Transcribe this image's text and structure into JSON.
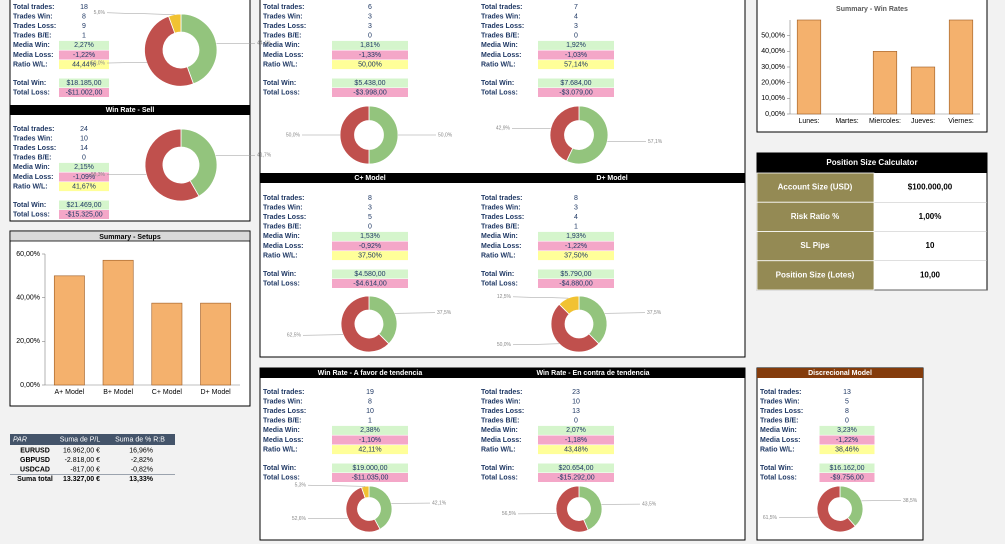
{
  "stat_labels": [
    "Total trades:",
    "Trades Win:",
    "Trades Loss:",
    "Trades B/E:",
    "Media Win:",
    "Media Loss:",
    "Ratio W/L:",
    "Total Win:",
    "Total Loss:"
  ],
  "panels": [
    {
      "values": [
        18,
        8,
        9,
        1,
        "2,27%",
        "-1,22%",
        "44,44%",
        "$18.185,00",
        "-$11.002,00"
      ]
    },
    {
      "title": "Win Rate - Sell",
      "values": [
        24,
        10,
        14,
        0,
        "2,15%",
        "-1,09%",
        "41,67%",
        "$21.469,00",
        "-$15.325,00"
      ]
    },
    {
      "values": [
        6,
        3,
        3,
        0,
        "1,81%",
        "-1,33%",
        "50,00%",
        "$5.438,00",
        "-$3.998,00"
      ]
    },
    {
      "values": [
        7,
        4,
        3,
        0,
        "1,92%",
        "-1,03%",
        "57,14%",
        "$7.684,00",
        "-$3.079,00"
      ]
    },
    {
      "title": "C+ Model",
      "values": [
        8,
        3,
        5,
        0,
        "1,53%",
        "-0,92%",
        "37,50%",
        "$4.580,00",
        "-$4.614,00"
      ]
    },
    {
      "title": "D+ Model",
      "values": [
        8,
        3,
        4,
        1,
        "1,93%",
        "-1,22%",
        "37,50%",
        "$5.790,00",
        "-$4.880,00"
      ]
    },
    {
      "title": "Win Rate - A favor de tendencia",
      "values": [
        19,
        8,
        10,
        1,
        "2,38%",
        "-1,10%",
        "42,11%",
        "$19.000,00",
        "-$11.035,00"
      ]
    },
    {
      "title": "Win Rate - En contra de tendencia",
      "values": [
        23,
        10,
        13,
        0,
        "2,07%",
        "-1,18%",
        "43,48%",
        "$20.654,00",
        "-$15.292,00"
      ]
    },
    {
      "title": "Discrecional Model",
      "values": [
        13,
        5,
        8,
        0,
        "3,23%",
        "-1,22%",
        "38,46%",
        "$16.162,00",
        "-$9.756,00"
      ]
    }
  ],
  "chart_data": [
    {
      "type": "pie",
      "values": [
        44.4,
        50.0,
        5.6
      ],
      "value_labels": [
        "44,4%",
        "50,0%",
        "5,6%"
      ],
      "colors": [
        "#93c47d",
        "#c0504d",
        "#f1c232"
      ]
    },
    {
      "type": "pie",
      "values": [
        41.7,
        58.3
      ],
      "value_labels": [
        "41,7%",
        "58,3%"
      ],
      "colors": [
        "#93c47d",
        "#c0504d"
      ]
    },
    {
      "type": "pie",
      "values": [
        50.0,
        50.0
      ],
      "value_labels": [
        "50,0%",
        "50,0%"
      ],
      "colors": [
        "#93c47d",
        "#c0504d"
      ]
    },
    {
      "type": "pie",
      "values": [
        57.1,
        42.9
      ],
      "value_labels": [
        "57,1%",
        "42,9%"
      ],
      "colors": [
        "#93c47d",
        "#c0504d"
      ]
    },
    {
      "type": "pie",
      "values": [
        37.5,
        62.5
      ],
      "value_labels": [
        "37,5%",
        "62,5%"
      ],
      "colors": [
        "#93c47d",
        "#c0504d"
      ]
    },
    {
      "type": "pie",
      "values": [
        37.5,
        50.0,
        12.5
      ],
      "value_labels": [
        "37,5%",
        "50,0%",
        "12,5%"
      ],
      "colors": [
        "#93c47d",
        "#c0504d",
        "#f1c232"
      ]
    },
    {
      "type": "pie",
      "values": [
        42.1,
        52.6,
        5.3
      ],
      "value_labels": [
        "42,1%",
        "52,6%",
        "5,3%"
      ],
      "colors": [
        "#93c47d",
        "#c0504d",
        "#f1c232"
      ]
    },
    {
      "type": "pie",
      "values": [
        43.5,
        56.5
      ],
      "value_labels": [
        "43,5%",
        "56,5%"
      ],
      "colors": [
        "#93c47d",
        "#c0504d"
      ]
    },
    {
      "type": "pie",
      "values": [
        38.5,
        61.5
      ],
      "value_labels": [
        "38,5%",
        "61,5%"
      ],
      "colors": [
        "#93c47d",
        "#c0504d"
      ]
    },
    {
      "type": "bar",
      "title": "Summary - Setups",
      "categories": [
        "A+ Model",
        "B+ Model",
        "C+ Model",
        "D+ Model"
      ],
      "values": [
        50,
        57.14,
        37.5,
        37.5
      ],
      "color": "#f4b16d",
      "ylim": [
        0,
        60
      ],
      "yticks": [
        {
          "value": 0,
          "label": "0,00%"
        },
        {
          "value": 20,
          "label": "20,00%"
        },
        {
          "value": 40,
          "label": "40,00%"
        },
        {
          "value": 60,
          "label": "60,00%"
        }
      ]
    },
    {
      "type": "bar",
      "title": "Summary - Win Rates",
      "categories": [
        "Lunes:",
        "Martes:",
        "Miercoles:",
        "Jueves:",
        "Viernes:"
      ],
      "values": [
        60,
        0,
        40,
        30,
        60
      ],
      "color": "#f4b16d",
      "ylim": [
        0,
        60
      ],
      "yticks": [
        {
          "value": 0,
          "label": "0,00%"
        },
        {
          "value": 10,
          "label": "10,00%"
        },
        {
          "value": 20,
          "label": "20,00%"
        },
        {
          "value": 30,
          "label": "30,00%"
        },
        {
          "value": 40,
          "label": "40,00%"
        },
        {
          "value": 50,
          "label": "50,00%"
        }
      ]
    }
  ],
  "calculator": {
    "title": "Position Size Calculator",
    "rows": [
      [
        "Account Size (USD)",
        "$100.000,00"
      ],
      [
        "Risk Ratio %",
        "1,00%"
      ],
      [
        "SL Pips",
        "10"
      ],
      [
        "Position Size (Lotes)",
        "10,00"
      ]
    ]
  },
  "pivot": {
    "header": [
      "PAR",
      "Suma de P/L",
      "Suma de % R:B"
    ],
    "rows": [
      [
        "EURUSD",
        "16.962,00 €",
        "16,96%"
      ],
      [
        "GBPUSD",
        "-2.818,00 €",
        "-2,82%"
      ],
      [
        "USDCAD",
        "-817,00 €",
        "-0,82%"
      ],
      [
        "Suma total",
        "13.327,00 €",
        "13,33%"
      ]
    ]
  }
}
